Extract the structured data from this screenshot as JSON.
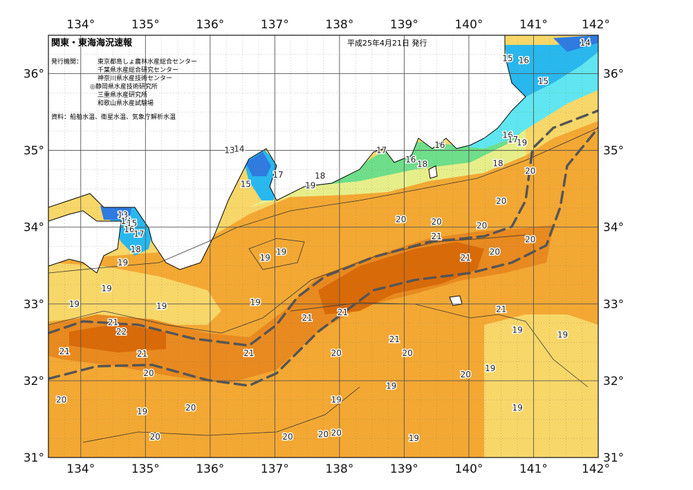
{
  "map": {
    "title": "関東・東海海況速報",
    "issue_date": "平成25年4月21日 発行",
    "issuer_label": "発行機関：",
    "issuers": [
      "東京都島しょ農林水産総合センター",
      "千葉県水産総合研究センター",
      "神奈川県水産技術センター",
      "◎静岡県水産技術研究所",
      "三重県水産研究所",
      "和歌山県水産試験場"
    ],
    "source": "資料：船舶水温、衛星水温、気象庁解析水温",
    "lon_range": [
      133.5,
      142
    ],
    "lat_range": [
      31,
      36.5
    ],
    "lon_labels": [
      "134°",
      "135°",
      "136°",
      "137°",
      "138°",
      "139°",
      "140°",
      "141°",
      "142°"
    ],
    "lat_labels": [
      "31°",
      "32°",
      "33°",
      "34°",
      "35°",
      "36°"
    ],
    "colors": {
      "land": "#ffffff",
      "t14": "#2f7be0",
      "t15": "#28b8ee",
      "t16": "#5fe6f0",
      "t17": "#6ede8a",
      "t18": "#e6ee8a",
      "t19": "#f8d769",
      "t20": "#f3a833",
      "t21": "#e88a20",
      "t22": "#d96a08",
      "kuroshio_axis": "#555555"
    },
    "isotherm_labels": [
      {
        "t": "14",
        "lon": 141.8,
        "lat": 36.4
      },
      {
        "t": "15",
        "lon": 140.6,
        "lat": 36.2
      },
      {
        "t": "16",
        "lon": 140.85,
        "lat": 36.17
      },
      {
        "t": "15",
        "lon": 141.15,
        "lat": 35.9
      },
      {
        "t": "13",
        "lon": 136.3,
        "lat": 35.0
      },
      {
        "t": "14",
        "lon": 136.45,
        "lat": 35.02
      },
      {
        "t": "17",
        "lon": 138.65,
        "lat": 35.0
      },
      {
        "t": "16",
        "lon": 139.55,
        "lat": 35.07
      },
      {
        "t": "16",
        "lon": 139.1,
        "lat": 34.88
      },
      {
        "t": "18",
        "lon": 139.28,
        "lat": 34.82
      },
      {
        "t": "16",
        "lon": 140.6,
        "lat": 35.2
      },
      {
        "t": "17",
        "lon": 140.68,
        "lat": 35.14
      },
      {
        "t": "19",
        "lon": 140.82,
        "lat": 35.1
      },
      {
        "t": "18",
        "lon": 140.45,
        "lat": 34.83
      },
      {
        "t": "17",
        "lon": 137.05,
        "lat": 34.68
      },
      {
        "t": "18",
        "lon": 137.7,
        "lat": 34.67
      },
      {
        "t": "15",
        "lon": 136.55,
        "lat": 34.56
      },
      {
        "t": "19",
        "lon": 137.55,
        "lat": 34.54
      },
      {
        "t": "20",
        "lon": 140.95,
        "lat": 34.73
      },
      {
        "t": "20",
        "lon": 140.5,
        "lat": 34.34
      },
      {
        "t": "20",
        "lon": 138.95,
        "lat": 34.1
      },
      {
        "t": "20",
        "lon": 139.5,
        "lat": 34.07
      },
      {
        "t": "20",
        "lon": 140.2,
        "lat": 34.02
      },
      {
        "t": "21",
        "lon": 139.5,
        "lat": 33.88
      },
      {
        "t": "20",
        "lon": 140.95,
        "lat": 33.84
      },
      {
        "t": "20",
        "lon": 140.4,
        "lat": 33.68
      },
      {
        "t": "21",
        "lon": 139.95,
        "lat": 33.6
      },
      {
        "t": "19",
        "lon": 136.85,
        "lat": 33.6
      },
      {
        "t": "19",
        "lon": 137.1,
        "lat": 33.68
      },
      {
        "t": "13",
        "lon": 134.65,
        "lat": 34.16
      },
      {
        "t": "14",
        "lon": 134.7,
        "lat": 34.08
      },
      {
        "t": "15",
        "lon": 134.79,
        "lat": 34.05
      },
      {
        "t": "16",
        "lon": 134.75,
        "lat": 33.97
      },
      {
        "t": "17",
        "lon": 134.9,
        "lat": 33.91
      },
      {
        "t": "18",
        "lon": 134.85,
        "lat": 33.71
      },
      {
        "t": "19",
        "lon": 134.65,
        "lat": 33.54
      },
      {
        "t": "19",
        "lon": 134.4,
        "lat": 33.2
      },
      {
        "t": "19",
        "lon": 133.9,
        "lat": 33.0
      },
      {
        "t": "19",
        "lon": 135.25,
        "lat": 32.97
      },
      {
        "t": "19",
        "lon": 136.7,
        "lat": 33.02
      },
      {
        "t": "21",
        "lon": 134.5,
        "lat": 32.76
      },
      {
        "t": "22",
        "lon": 134.63,
        "lat": 32.64
      },
      {
        "t": "21",
        "lon": 133.75,
        "lat": 32.38
      },
      {
        "t": "21",
        "lon": 134.95,
        "lat": 32.35
      },
      {
        "t": "21",
        "lon": 136.6,
        "lat": 32.36
      },
      {
        "t": "21",
        "lon": 137.5,
        "lat": 32.82
      },
      {
        "t": "21",
        "lon": 138.05,
        "lat": 32.89
      },
      {
        "t": "21",
        "lon": 138.85,
        "lat": 32.54
      },
      {
        "t": "20",
        "lon": 137.95,
        "lat": 32.36
      },
      {
        "t": "20",
        "lon": 139.05,
        "lat": 32.36
      },
      {
        "t": "20",
        "lon": 139.95,
        "lat": 32.08
      },
      {
        "t": "21",
        "lon": 140.5,
        "lat": 32.93
      },
      {
        "t": "19",
        "lon": 140.75,
        "lat": 32.66
      },
      {
        "t": "19",
        "lon": 141.45,
        "lat": 32.6
      },
      {
        "t": "19",
        "lon": 140.33,
        "lat": 32.16
      },
      {
        "t": "19",
        "lon": 138.8,
        "lat": 31.93
      },
      {
        "t": "19",
        "lon": 137.95,
        "lat": 31.75
      },
      {
        "t": "19",
        "lon": 140.75,
        "lat": 31.65
      },
      {
        "t": "20",
        "lon": 135.05,
        "lat": 32.1
      },
      {
        "t": "20",
        "lon": 133.7,
        "lat": 31.75
      },
      {
        "t": "20",
        "lon": 135.7,
        "lat": 31.65
      },
      {
        "t": "19",
        "lon": 134.95,
        "lat": 31.6
      },
      {
        "t": "20",
        "lon": 135.15,
        "lat": 31.27
      },
      {
        "t": "20",
        "lon": 137.2,
        "lat": 31.27
      },
      {
        "t": "20",
        "lon": 137.75,
        "lat": 31.3
      },
      {
        "t": "20",
        "lon": 137.95,
        "lat": 31.32
      },
      {
        "t": "19",
        "lon": 139.15,
        "lat": 31.25
      }
    ]
  }
}
